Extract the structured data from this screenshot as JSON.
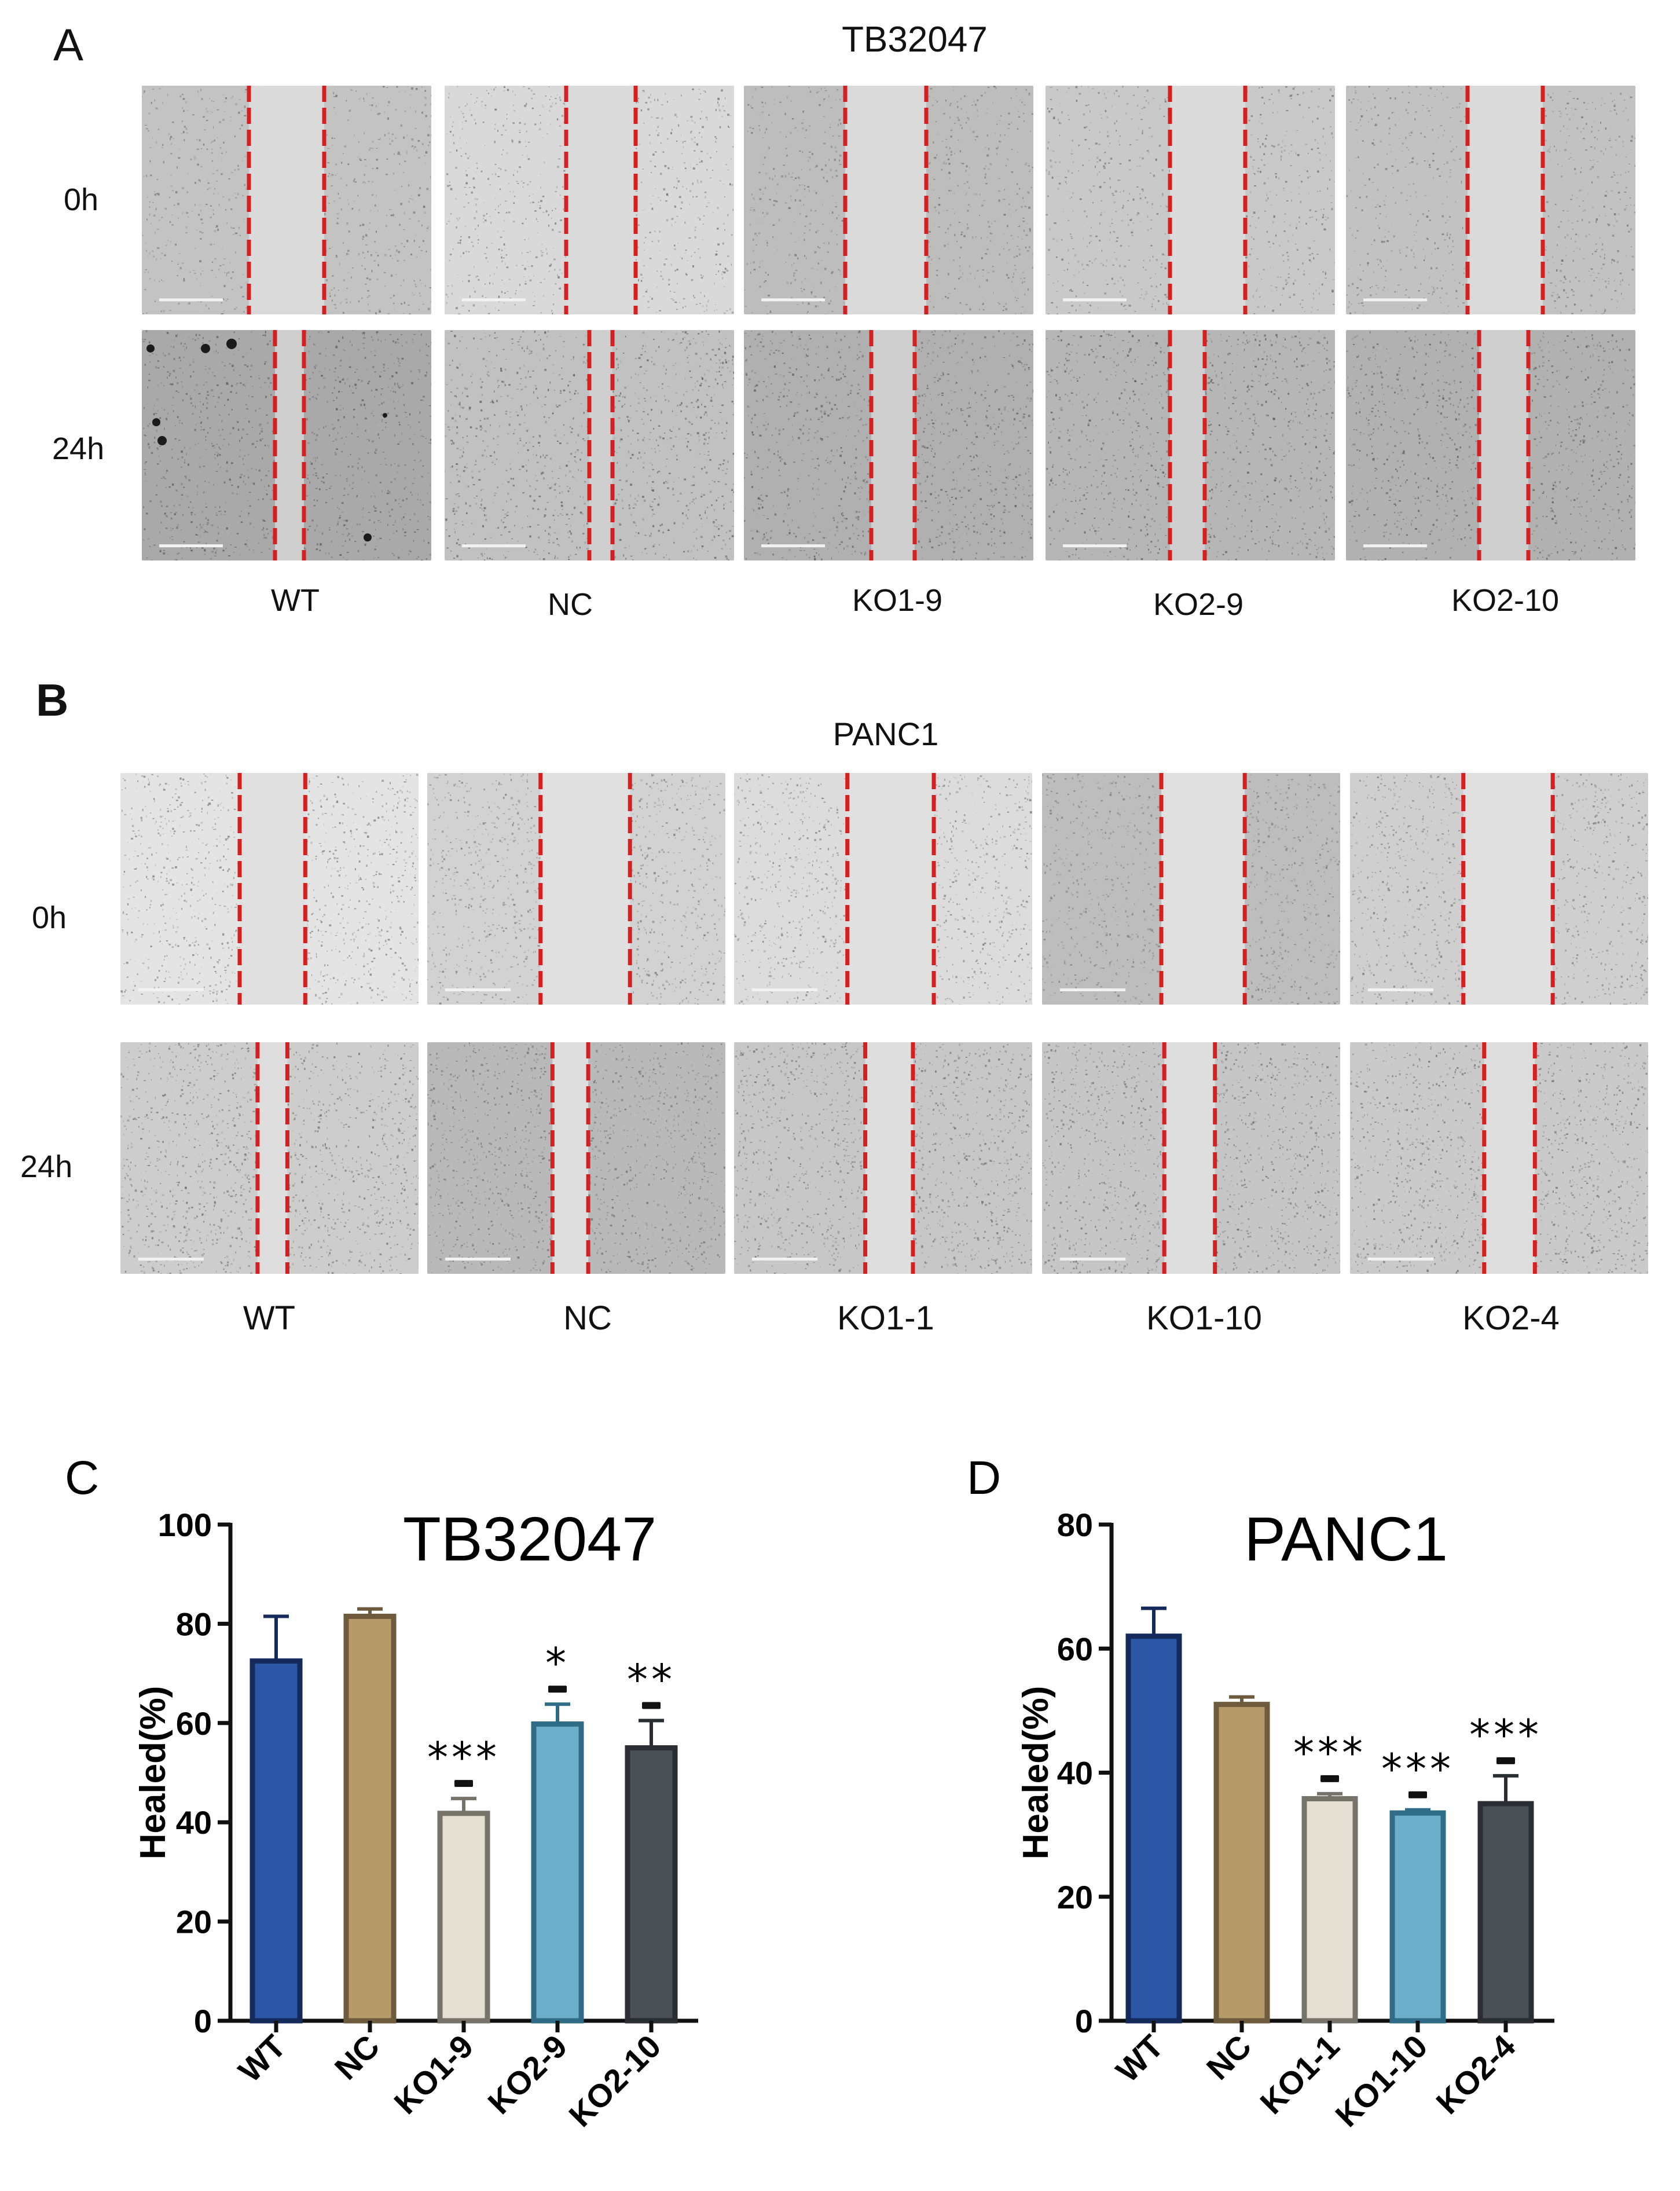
{
  "panel_a": {
    "letter": "A",
    "title": "TB32047",
    "rows": [
      "0h",
      "24h"
    ],
    "columns": [
      "WT",
      "NC",
      "KO1-9",
      "KO2-9",
      "KO2-10"
    ]
  },
  "panel_b": {
    "letter": "B",
    "title": "PANC1",
    "rows": [
      "0h",
      "24h"
    ],
    "columns": [
      "WT",
      "NC",
      "KO1-1",
      "KO1-10",
      "KO2-4"
    ]
  },
  "colors": {
    "wound_line": "#d42020",
    "bar_outline": "#111111",
    "bars": [
      "#2b57a6",
      "#b79a6a",
      "#e4dfd3",
      "#6dafca",
      "#4b5056"
    ],
    "bar_edges": [
      "#15295a",
      "#6e5a3c",
      "#76736b",
      "#2f6d87",
      "#2a2d31"
    ]
  },
  "chart_data": [
    {
      "letter": "C",
      "type": "bar",
      "title": "TB32047",
      "ylabel": "Healed(%)",
      "xlabel": "",
      "ylim": [
        0,
        100
      ],
      "yticks": [
        "0",
        "20",
        "40",
        "60",
        "80",
        "100"
      ],
      "categories": [
        "WT",
        "NC",
        "KO1-9",
        "KO2-9",
        "KO2-10"
      ],
      "values": [
        72.5,
        81.5,
        41.8,
        59.8,
        55.0
      ],
      "errors": [
        9.0,
        1.5,
        3.0,
        4.0,
        5.5
      ],
      "significance": [
        "",
        "",
        "***",
        "*",
        "**"
      ]
    },
    {
      "letter": "D",
      "type": "bar",
      "title": "PANC1",
      "ylabel": "Healed(%)",
      "xlabel": "",
      "ylim": [
        0,
        80
      ],
      "yticks": [
        "0",
        "20",
        "40",
        "60",
        "80"
      ],
      "categories": [
        "WT",
        "NC",
        "KO1-1",
        "KO1-10",
        "KO2-4"
      ],
      "values": [
        62.0,
        51.0,
        35.8,
        33.5,
        35.0
      ],
      "errors": [
        4.5,
        1.2,
        0.8,
        0.5,
        4.5
      ],
      "significance": [
        "",
        "",
        "***",
        "***",
        "***"
      ]
    }
  ]
}
